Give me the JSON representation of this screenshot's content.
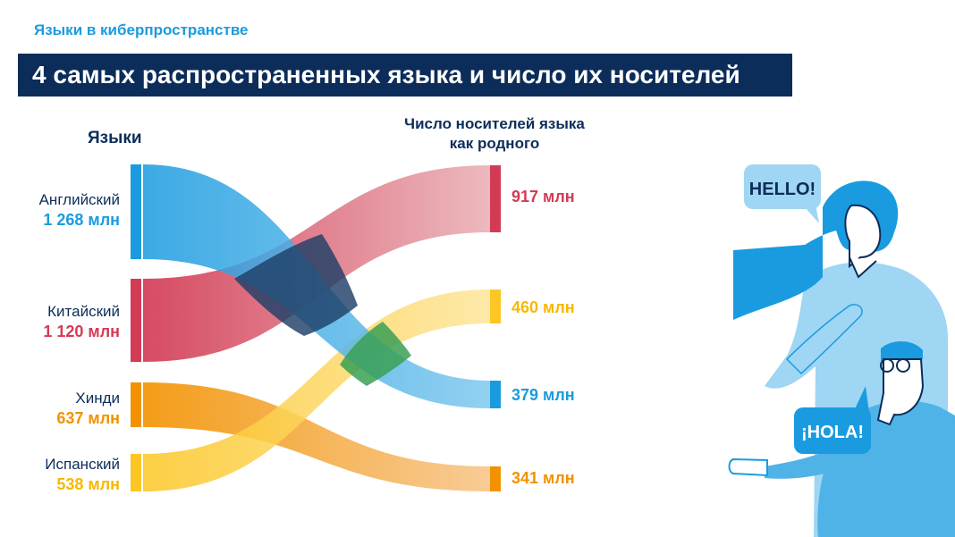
{
  "header": {
    "subtitle": "Языки в киберпространстве",
    "title": "4 самых распространенных языка и число их носителей"
  },
  "columns": {
    "left": "Языки",
    "right_line1": "Число носителей языка",
    "right_line2": "как родного"
  },
  "languages": [
    {
      "name": "Английский",
      "value": "1 268 млн",
      "total": 1268,
      "native": 379,
      "native_label": "379 млн",
      "color": "#1a9be0"
    },
    {
      "name": "Китайский",
      "value": "1 120 млн",
      "total": 1120,
      "native": 917,
      "native_label": "917 млн",
      "color": "#d33b55"
    },
    {
      "name": "Хинди",
      "value": "637 млн",
      "total": 637,
      "native": 341,
      "native_label": "341 млн",
      "color": "#f29200"
    },
    {
      "name": "Испанский",
      "value": "538 млн",
      "total": 538,
      "native": 460,
      "native_label": "460 млн",
      "color": "#fcc623"
    }
  ],
  "illustration": {
    "bubble_top": "HELLO!",
    "bubble_bottom": "¡HOLA!",
    "colors": {
      "light_blue": "#9fd6f3",
      "blue": "#1a9be0",
      "navy": "#0c2d5a"
    }
  }
}
